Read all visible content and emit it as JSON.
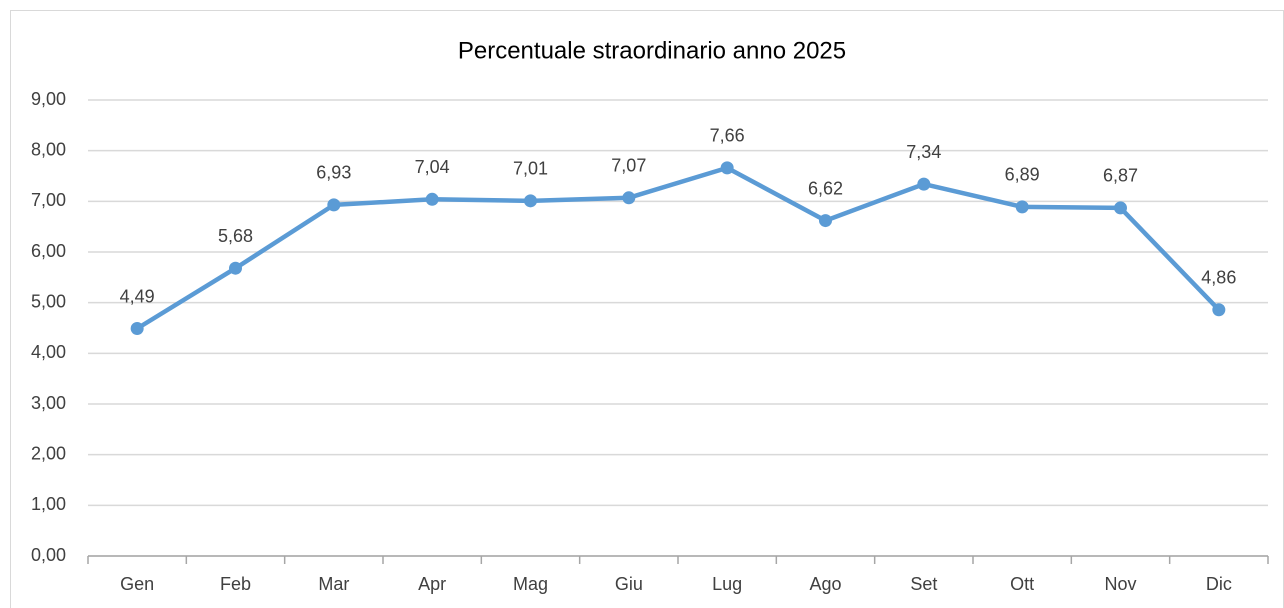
{
  "chart_data": {
    "type": "line",
    "title": "Percentuale straordinario anno 2025",
    "categories": [
      "Gen",
      "Feb",
      "Mar",
      "Apr",
      "Mag",
      "Giu",
      "Lug",
      "Ago",
      "Set",
      "Ott",
      "Nov",
      "Dic"
    ],
    "series": [
      {
        "color": "#5b9bd5",
        "values": [
          4.49,
          5.68,
          6.93,
          7.04,
          7.01,
          7.07,
          7.66,
          6.62,
          7.34,
          6.89,
          6.87,
          4.86
        ],
        "value_labels": [
          "4,49",
          "5,68",
          "6,93",
          "7,04",
          "7,01",
          "7,07",
          "7,66",
          "6,62",
          "7,34",
          "6,89",
          "6,87",
          "4,86"
        ]
      }
    ],
    "ylim": [
      0,
      9
    ],
    "yticks": [
      {
        "value": 0,
        "label": "0,00"
      },
      {
        "value": 1,
        "label": "1,00"
      },
      {
        "value": 2,
        "label": "2,00"
      },
      {
        "value": 3,
        "label": "3,00"
      },
      {
        "value": 4,
        "label": "4,00"
      },
      {
        "value": 5,
        "label": "5,00"
      },
      {
        "value": 6,
        "label": "6,00"
      },
      {
        "value": 7,
        "label": "7,00"
      },
      {
        "value": 8,
        "label": "8,00"
      },
      {
        "value": 9,
        "label": "9,00"
      }
    ],
    "grid": true
  }
}
